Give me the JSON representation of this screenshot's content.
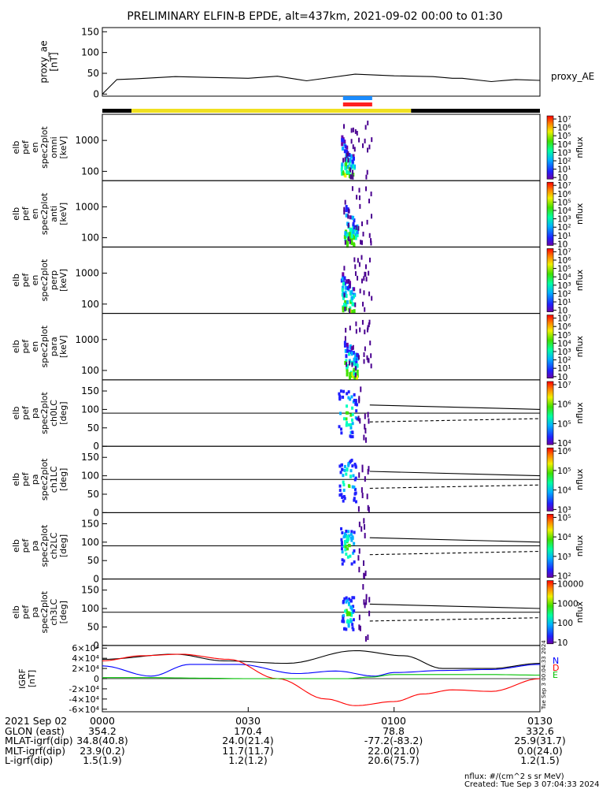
{
  "title": "PRELIMINARY ELFIN-B EPDE, alt=437km, 2021-09-02 00:00 to 01:30",
  "chart_data": [
    {
      "type": "line",
      "id": "proxy_ae",
      "ylabel": "proxy_ae\n[nT]",
      "right_label": "proxy_AE",
      "ylim": [
        -5,
        160
      ],
      "yticks": [
        0,
        50,
        100,
        150
      ],
      "x_minutes": [
        0,
        3,
        7,
        15,
        30,
        36,
        42,
        52,
        60,
        68,
        72,
        74,
        80,
        85,
        90
      ],
      "values": [
        0,
        35,
        37,
        42,
        38,
        43,
        32,
        48,
        44,
        42,
        38,
        38,
        30,
        35,
        33
      ]
    },
    {
      "type": "bar",
      "id": "status_bars",
      "description_segments": [
        {
          "name": "sunlight",
          "start": 0,
          "end": 6,
          "color": "#000000"
        },
        {
          "name": "sunlight",
          "start": 6,
          "end": 63.5,
          "color": "#f0e020"
        },
        {
          "name": "sunlight",
          "start": 63.5,
          "end": 90,
          "color": "#000000"
        },
        {
          "name": "science-zone-1",
          "start": 49.5,
          "end": 55.5,
          "color": "#1a8cff"
        },
        {
          "name": "science-zone-2",
          "start": 49.5,
          "end": 55.5,
          "color": "#ff2020"
        }
      ]
    },
    {
      "type": "heatmap",
      "id": "energy_spectra",
      "panels": [
        {
          "ylabel": "elb\npef\nen\nspec2plot\nomni\n[keV]"
        },
        {
          "ylabel": "elb\npef\nen\nspec2plot\nanti\n[keV]"
        },
        {
          "ylabel": "elb\npef\nen\nspec2plot\nperp\n[keV]"
        },
        {
          "ylabel": "elb\npef\nen\nspec2plot\npara\n[keV]"
        }
      ],
      "yscale": "log",
      "yticks": [
        100,
        1000
      ],
      "ylim": [
        50,
        7000
      ],
      "event_x_minutes": [
        49,
        55
      ],
      "colorbar": {
        "label": "nflux",
        "ticks": [
          "10",
          "10¹",
          "10²",
          "10³",
          "10⁴",
          "10⁵",
          "10⁶",
          "10⁷"
        ]
      }
    },
    {
      "type": "heatmap",
      "id": "pitch_angle",
      "panels": [
        {
          "ylabel": "elb\npef\npa\nspec2plot\nch0LC\n[deg]",
          "colorbar_ticks": [
            "10⁴",
            "10⁵",
            "10⁶",
            "10⁷"
          ]
        },
        {
          "ylabel": "elb\npef\npa\nspec2plot\nch1LC\n[deg]",
          "colorbar_ticks": [
            "10³",
            "10⁴",
            "10⁵",
            "10⁶"
          ]
        },
        {
          "ylabel": "elb\npef\npa\nspec2plot\nch2LC\n[deg]",
          "colorbar_ticks": [
            "10²",
            "10³",
            "10⁴",
            "10⁵"
          ]
        },
        {
          "ylabel": "elb\npef\npa\nspec2plot\nch3LC\n[deg]",
          "colorbar_ticks": [
            "10",
            "100",
            "1000",
            "10000"
          ]
        }
      ],
      "ylim": [
        0,
        180
      ],
      "yticks": [
        0,
        50,
        100,
        150
      ],
      "reference_line": 90,
      "loss_cone_solid": {
        "x_minutes": [
          55,
          90
        ],
        "values": [
          112,
          100
        ]
      },
      "loss_cone_dashed": {
        "x_minutes": [
          55,
          90
        ],
        "values": [
          66,
          75
        ]
      },
      "colorbar_label": "nflux"
    },
    {
      "type": "line",
      "id": "igrf",
      "ylabel": "IGRF\n[nT]",
      "ylim": [
        -65000,
        65000
      ],
      "yticks": [
        "-6×10⁴",
        "-4×10⁴",
        "-2×10⁴",
        "0",
        "2×10⁴",
        "4×10⁴",
        "6×10⁴"
      ],
      "ytick_values": [
        -60000,
        -40000,
        -20000,
        0,
        20000,
        40000,
        60000
      ],
      "legend": [
        "N",
        "D",
        "E"
      ],
      "legend_colors": [
        "#0000ff",
        "#ff0000",
        "#00c000"
      ],
      "series": [
        {
          "name": "total",
          "color": "#000000",
          "x_minutes": [
            0,
            15,
            25,
            38,
            52,
            62,
            70,
            80,
            90
          ],
          "values": [
            38000,
            48000,
            35000,
            30000,
            55000,
            45000,
            20000,
            20000,
            30000
          ]
        },
        {
          "name": "N",
          "color": "#0000ff",
          "x_minutes": [
            0,
            10,
            18,
            28,
            40,
            48,
            56,
            60,
            70,
            80,
            90
          ],
          "values": [
            25000,
            5000,
            28000,
            28000,
            10000,
            15000,
            5000,
            12000,
            16000,
            18000,
            28000
          ]
        },
        {
          "name": "D",
          "color": "#ff0000",
          "x_minutes": [
            0,
            8,
            16,
            26,
            36,
            46,
            52,
            60,
            66,
            72,
            80,
            90
          ],
          "values": [
            35000,
            45000,
            48000,
            38000,
            0,
            -40000,
            -53000,
            -45000,
            -30000,
            -22000,
            -25000,
            0
          ]
        },
        {
          "name": "E",
          "color": "#00c000",
          "x_minutes": [
            0,
            10,
            20,
            30,
            40,
            50,
            55,
            60,
            70,
            80,
            90
          ],
          "values": [
            2000,
            2000,
            1000,
            0,
            0,
            0,
            3000,
            8000,
            8000,
            8000,
            7000
          ]
        }
      ]
    }
  ],
  "xaxis": {
    "x_minutes_range": [
      0,
      90
    ]
  },
  "footer": {
    "rows": [
      {
        "label": "2021 Sep 02",
        "values": [
          "0000",
          "0030",
          "0100",
          "0130"
        ]
      },
      {
        "label": "GLON (east)",
        "values": [
          "354.2",
          "170.4",
          "78.8",
          "332.6"
        ]
      },
      {
        "label": "MLAT-igrf(dip)",
        "values": [
          "34.8(40.8)",
          "24.0(21.4)",
          "-77.2(-83.2)",
          "25.9(31.7)"
        ]
      },
      {
        "label": "MLT-igrf(dip)",
        "values": [
          "23.9(0.2)",
          "11.7(11.7)",
          "22.0(21.0)",
          "0.0(24.0)"
        ]
      },
      {
        "label": "L-igrf(dip)",
        "values": [
          "1.5(1.9)",
          "1.2(1.2)",
          "20.6(75.7)",
          "1.2(1.5)"
        ]
      }
    ],
    "units_note": "nflux: #/(cm^2 s sr MeV)",
    "created_note": "Created: Tue Sep  3 07:04:33 2024",
    "side_timestamp": "Tue Sep  3 00:04:33 2024"
  }
}
